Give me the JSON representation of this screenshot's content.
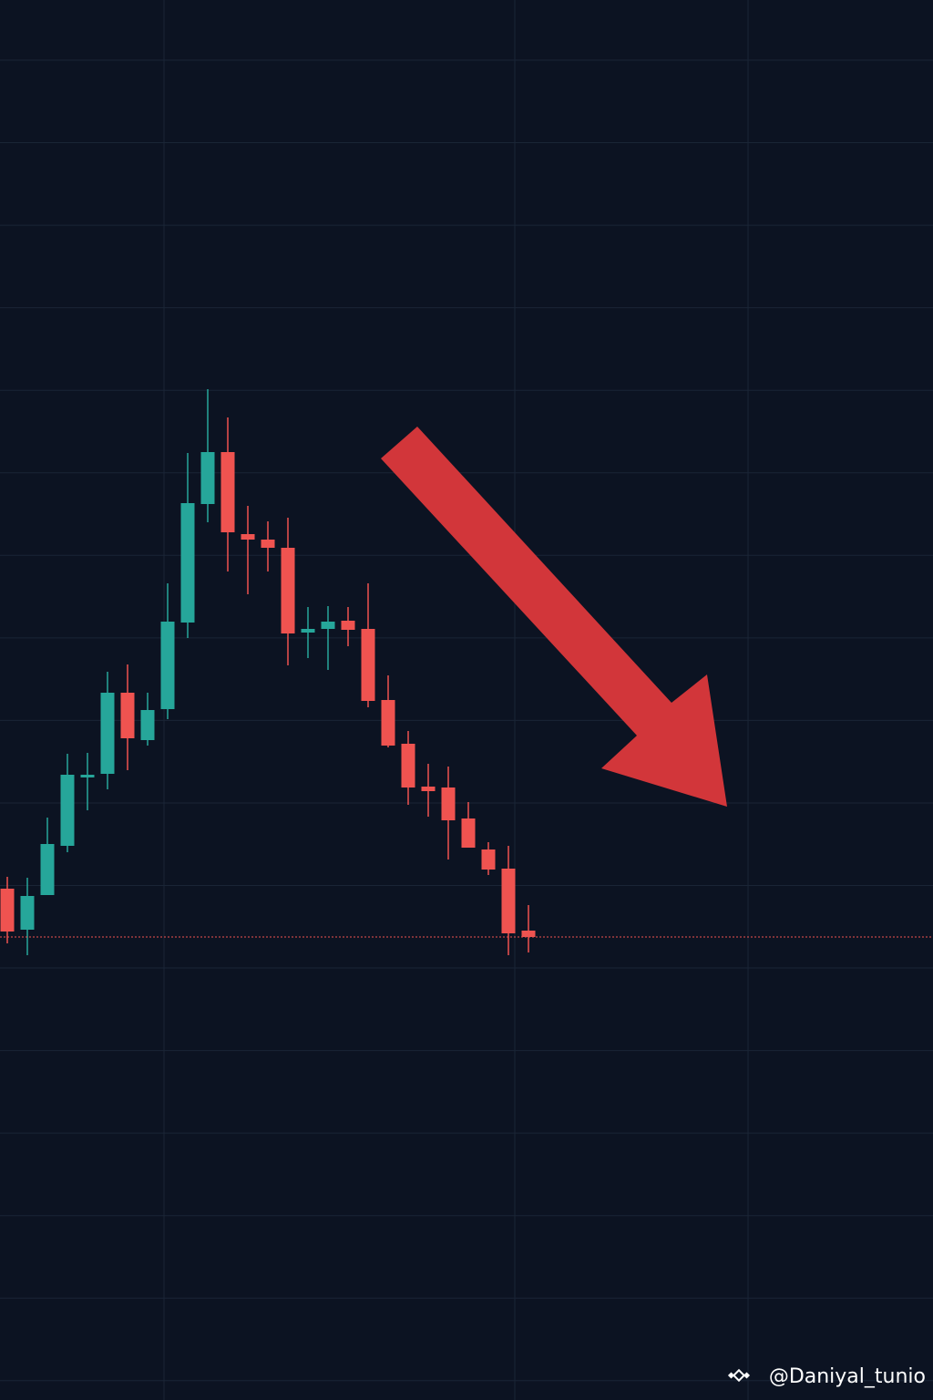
{
  "chart_data": {
    "type": "candlestick",
    "open": [
      561,
      516,
      554,
      608,
      683,
      687,
      776,
      724,
      758,
      853,
      983,
      1040,
      950,
      944,
      935,
      842,
      846,
      855,
      846,
      768,
      720,
      673,
      672,
      638,
      604,
      583,
      515
    ],
    "close": [
      514,
      553,
      610,
      686,
      686,
      776,
      726,
      757,
      854,
      984,
      1040,
      952,
      944,
      935,
      841,
      846,
      854,
      845,
      767,
      718,
      672,
      668,
      636,
      606,
      582,
      512,
      508
    ],
    "high": [
      574,
      573,
      639,
      709,
      710,
      799,
      807,
      776,
      896,
      1039,
      1109,
      1078,
      981,
      964,
      968,
      870,
      871,
      870,
      896,
      795,
      734,
      698,
      695,
      656,
      612,
      608,
      543
    ],
    "low": [
      501,
      488,
      554,
      601,
      647,
      670,
      691,
      718,
      747,
      836,
      963,
      909,
      884,
      909,
      806,
      814,
      801,
      827,
      760,
      716,
      653,
      640,
      593,
      606,
      576,
      488,
      491
    ],
    "up_color": "#26a69a",
    "down_color": "#ef5350",
    "ylim": [
      0,
      1536
    ]
  },
  "watermark": "@Daniyal_tunio"
}
